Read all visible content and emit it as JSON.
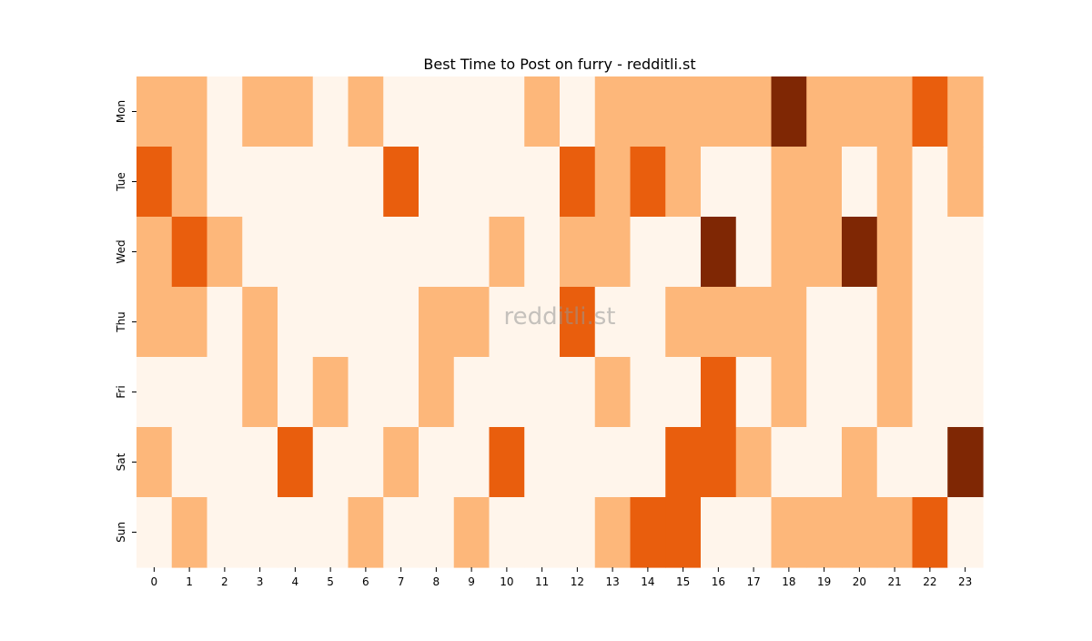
{
  "chart_data": {
    "type": "heatmap",
    "title": "Best Time to Post on furry - redditli.st",
    "xlabel": "",
    "ylabel": "",
    "x": [
      0,
      1,
      2,
      3,
      4,
      5,
      6,
      7,
      8,
      9,
      10,
      11,
      12,
      13,
      14,
      15,
      16,
      17,
      18,
      19,
      20,
      21,
      22,
      23
    ],
    "y": [
      "Mon",
      "Tue",
      "Wed",
      "Thu",
      "Fri",
      "Sat",
      "Sun"
    ],
    "values": [
      [
        1,
        1,
        0,
        1,
        1,
        0,
        1,
        0,
        0,
        0,
        0,
        1,
        0,
        1,
        1,
        1,
        1,
        1,
        3,
        1,
        1,
        1,
        2,
        1
      ],
      [
        2,
        1,
        0,
        0,
        0,
        0,
        0,
        2,
        0,
        0,
        0,
        0,
        2,
        1,
        2,
        1,
        0,
        0,
        1,
        1,
        0,
        1,
        0,
        1
      ],
      [
        1,
        2,
        1,
        0,
        0,
        0,
        0,
        0,
        0,
        0,
        1,
        0,
        1,
        1,
        0,
        0,
        3,
        0,
        1,
        1,
        3,
        1,
        0,
        0
      ],
      [
        1,
        1,
        0,
        1,
        0,
        0,
        0,
        0,
        1,
        1,
        0,
        0,
        2,
        0,
        0,
        1,
        1,
        1,
        1,
        0,
        0,
        1,
        0,
        0
      ],
      [
        0,
        0,
        0,
        1,
        0,
        1,
        0,
        0,
        1,
        0,
        0,
        0,
        0,
        1,
        0,
        0,
        2,
        0,
        1,
        0,
        0,
        1,
        0,
        0
      ],
      [
        1,
        0,
        0,
        0,
        2,
        0,
        0,
        1,
        0,
        0,
        2,
        0,
        0,
        0,
        0,
        2,
        2,
        1,
        0,
        0,
        1,
        0,
        0,
        3
      ],
      [
        0,
        1,
        0,
        0,
        0,
        0,
        1,
        0,
        0,
        1,
        0,
        0,
        0,
        1,
        2,
        2,
        0,
        0,
        1,
        1,
        1,
        1,
        2,
        0
      ]
    ],
    "colors": [
      "#fff5eb",
      "#fdb77a",
      "#e95e0d",
      "#7f2704"
    ],
    "grid": false,
    "legend": "none"
  },
  "watermark": "redditli.st"
}
